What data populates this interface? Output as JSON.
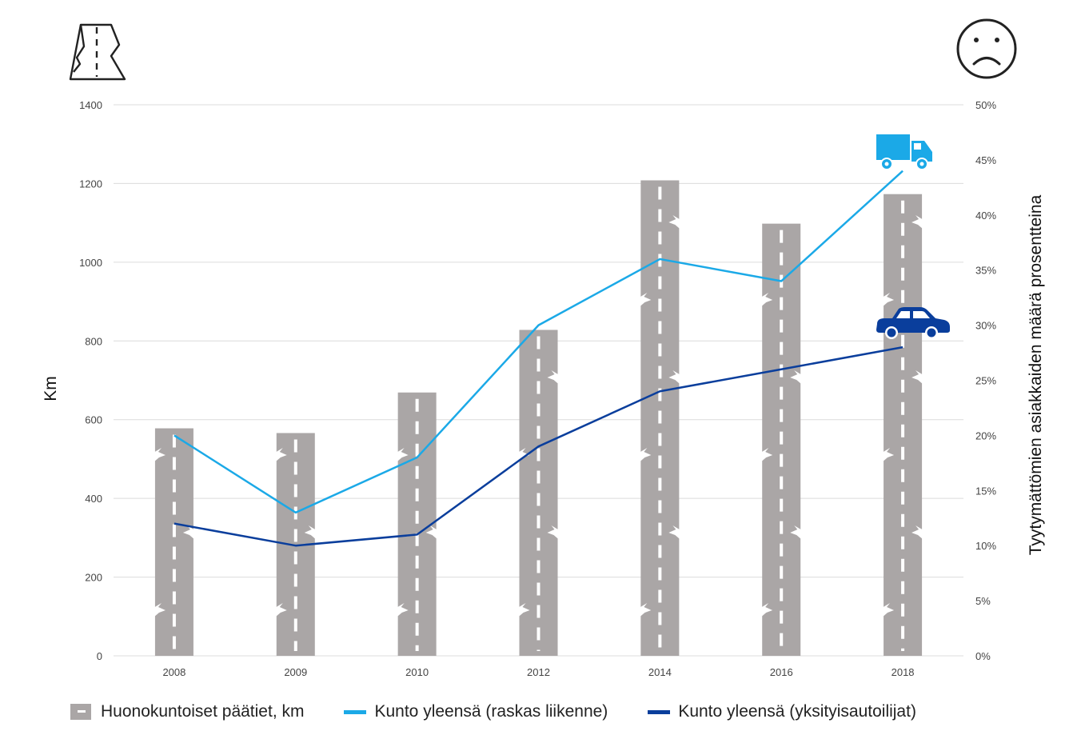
{
  "chart_data": {
    "type": "bar+line",
    "categories": [
      "2008",
      "2009",
      "2010",
      "2012",
      "2014",
      "2016",
      "2018"
    ],
    "bars": {
      "name": "Huonokuntoiset päätiet, km",
      "values": [
        578,
        566,
        669,
        828,
        1208,
        1098,
        1173
      ],
      "color": "#aaa6a6"
    },
    "series": [
      {
        "name": "Kunto yleensä (raskas liikenne)",
        "values": [
          20,
          13,
          18,
          30,
          36,
          34,
          44
        ],
        "color": "#1ba9e7",
        "icon": "truck-icon"
      },
      {
        "name": "Kunto yleensä (yksityisautoilijat)",
        "values": [
          12,
          10,
          11,
          19,
          24,
          26,
          28
        ],
        "color": "#0a3e9c",
        "icon": "car-icon"
      }
    ],
    "y_left": {
      "label": "Km",
      "ticks": [
        "0",
        "200",
        "400",
        "600",
        "800",
        "1000",
        "1200",
        "1400"
      ],
      "range": [
        0,
        1400
      ]
    },
    "y_right": {
      "label": "Tyytymättömien asiakkaiden määrä prosentteina",
      "ticks": [
        "0%",
        "5%",
        "10%",
        "15%",
        "20%",
        "25%",
        "30%",
        "35%",
        "40%",
        "45%",
        "50%"
      ],
      "range": [
        0,
        50
      ]
    },
    "grid": true,
    "legend_position": "bottom",
    "decor_icons": [
      "broken-road-icon",
      "sad-face-icon"
    ]
  }
}
